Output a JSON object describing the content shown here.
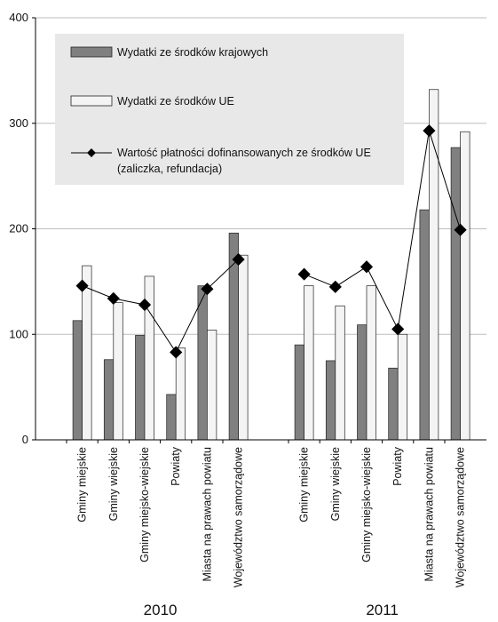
{
  "chart_data": {
    "type": "bar",
    "ylim": [
      0,
      400
    ],
    "yticks": [
      0,
      100,
      200,
      300,
      400
    ],
    "grid": true,
    "legend_position": "top-left",
    "groups": [
      {
        "label": "2010",
        "categories": [
          "Gminy miejskie",
          "Gminy wiejskie",
          "Gminy miejsko-wiejskie",
          "Powiaty",
          "Miasta na prawach powiatu",
          "Województwo samorządowe"
        ],
        "series": [
          {
            "name": "Wydatki ze środków krajowych",
            "values": [
              113,
              76,
              99,
              43,
              146,
              196
            ]
          },
          {
            "name": "Wydatki ze środków UE",
            "values": [
              165,
              130,
              155,
              87,
              104,
              175
            ]
          },
          {
            "name": "Wartość płatności dofinansowanych ze środków UE (zaliczka, refundacja)",
            "values": [
              146,
              134,
              128,
              83,
              143,
              171
            ]
          }
        ]
      },
      {
        "label": "2011",
        "categories": [
          "Gminy miejskie",
          "Gminy wiejskie",
          "Gminy miejsko-wiejskie",
          "Powiaty",
          "Miasta na prawach powiatu",
          "Województwo samorządowe"
        ],
        "series": [
          {
            "name": "Wydatki ze środków krajowych",
            "values": [
              90,
              75,
              109,
              68,
              218,
              277
            ]
          },
          {
            "name": "Wydatki ze środków UE",
            "values": [
              146,
              127,
              146,
              100,
              332,
              292
            ]
          },
          {
            "name": "Wartość płatności dofinansowanych ze środków UE (zaliczka, refundacja)",
            "values": [
              157,
              145,
              164,
              105,
              293,
              199
            ]
          }
        ]
      }
    ],
    "legend": [
      {
        "label": "Wydatki ze środków krajowych"
      },
      {
        "label": "Wydatki ze środków UE"
      },
      {
        "label": "Wartość płatności dofinansowanych ze środków UE",
        "label_line2": "(zaliczka, refundacja)"
      }
    ],
    "colors": {
      "krajowe": "#808080",
      "ue": "#f4f4f4",
      "line": "#000000",
      "grid": "#bdbdbd",
      "legend_bg": "#e8e8e8"
    }
  }
}
